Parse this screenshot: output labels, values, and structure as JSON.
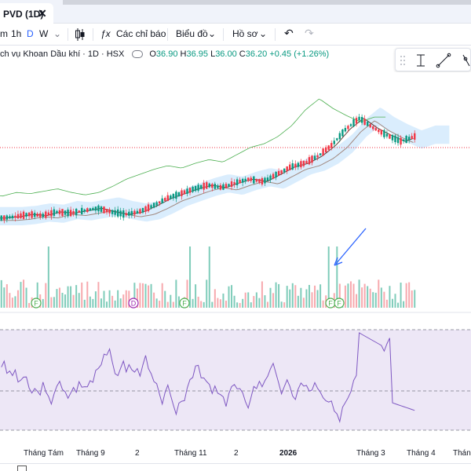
{
  "tab": {
    "title": "PVD (1D)",
    "close": "✕"
  },
  "toolbar": {
    "interval_1m": "m",
    "interval_1h": "1h",
    "interval_d": "D",
    "interval_w": "W",
    "indicators_label": "Các chỉ báo",
    "fx_symbol": "ƒx",
    "layouts_label": "Biểu đồ",
    "profile_label": "Hồ sơ",
    "undo": "↶",
    "redo": "↷"
  },
  "legend": {
    "symbol_name": "ch vụ Khoan Dầu khí · 1D · HSX",
    "o_key": "O",
    "o_val": "36.90",
    "h_key": "H",
    "h_val": "36.95",
    "l_key": "L",
    "l_val": "36.00",
    "c_key": "C",
    "c_val": "36.20",
    "change": "+0.45 (+1.26%)"
  },
  "colors": {
    "up": "#089981",
    "down": "#f23645",
    "cloud": "#bbdefb",
    "rsi": "#7e57c2",
    "rsi_band": "#ede7f6",
    "arrow": "#2962ff"
  },
  "events": {
    "f": "F",
    "d": "D"
  },
  "x_axis": [
    "Tháng Tám",
    "Tháng 9",
    "2",
    "Tháng 11",
    "2",
    "2026",
    "Tháng 3",
    "Tháng 4",
    "Tháng"
  ],
  "chart_data": {
    "type": "line",
    "series": [
      {
        "name": "",
        "values": [
          30.6,
          30.7,
          30.9,
          30.8,
          31.1,
          31.0,
          31.2,
          31.4,
          31.1,
          30.9,
          31.1,
          31.6,
          32.2,
          32.6,
          33.0,
          33.3,
          33.1,
          33.5,
          33.8,
          33.6,
          34.2,
          34.8,
          35.1,
          35.7,
          36.6,
          37.9,
          38.8,
          38.0,
          37.4,
          36.9,
          37.3
        ]
      }
    ]
  }
}
